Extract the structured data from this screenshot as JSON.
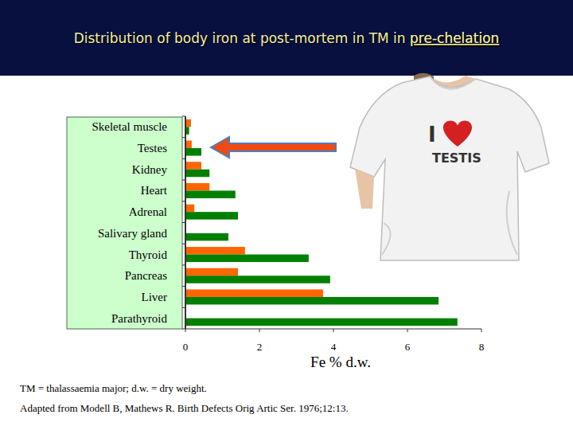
{
  "chart_data": {
    "type": "bar",
    "orientation": "horizontal",
    "title": "Distribution of body iron at post-mortem in TM in pre-chelation",
    "x_label": "Fe % d.w.",
    "categories": [
      "Skeletal muscle",
      "Testes",
      "Kidney",
      "Heart",
      "Adrenal",
      "Salivary gland",
      "Thyroid",
      "Pancreas",
      "Liver",
      "Parathyroid"
    ],
    "series": [
      {
        "color": "#ff6600",
        "values": [
          0.15,
          0.17,
          0.43,
          0.65,
          0.24,
          null,
          1.61,
          1.42,
          3.72,
          null
        ]
      },
      {
        "color": "#008000",
        "values": [
          0.1,
          0.43,
          0.65,
          1.35,
          1.42,
          1.16,
          3.33,
          3.91,
          6.84,
          7.35
        ]
      }
    ],
    "xlim": [
      0,
      8
    ],
    "xticks": [
      0,
      2,
      4,
      6,
      8
    ],
    "grid": false,
    "annotations": [
      "TM = thalassaemia major; d.w. = dry weight.",
      "Adapted from Modell B, Mathews R. Birth Defects Orig Artic Ser. 1976;12:13.",
      "I",
      "TESTIS"
    ]
  }
}
